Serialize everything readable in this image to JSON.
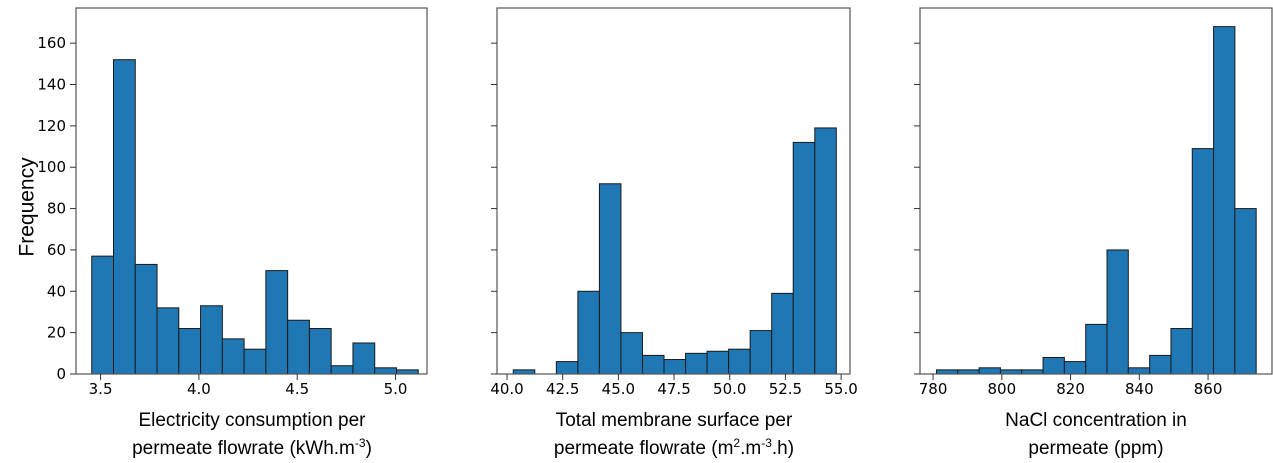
{
  "chart_data": [
    {
      "type": "bar",
      "title": "",
      "xlabel_lines": [
        [
          {
            "t": "Electricity consumption per"
          }
        ],
        [
          {
            "t": "permeate flowrate (kWh.m"
          },
          {
            "t": "-3",
            "sup": true
          },
          {
            "t": ")"
          }
        ]
      ],
      "ylabel": "Frequency",
      "xlim": [
        3.375,
        5.16
      ],
      "ylim": [
        0,
        177
      ],
      "xticks": [
        "3.5",
        "4.0",
        "4.5",
        "5.0"
      ],
      "xtick_values": [
        3.5,
        4.0,
        4.5,
        5.0
      ],
      "yticks": [
        "0",
        "20",
        "40",
        "60",
        "80",
        "100",
        "120",
        "140",
        "160"
      ],
      "ytick_values": [
        0,
        20,
        40,
        60,
        80,
        100,
        120,
        140,
        160
      ],
      "show_yticklabels": true,
      "bin_edges": [
        3.455,
        3.5657,
        3.6764,
        3.7871,
        3.8978,
        4.0085,
        4.1192,
        4.2299,
        4.3406,
        4.4513,
        4.562,
        4.6727,
        4.7834,
        4.8941,
        5.0048,
        5.1155
      ],
      "counts": [
        57,
        152,
        53,
        32,
        22,
        33,
        17,
        12,
        50,
        26,
        22,
        4,
        15,
        3,
        2
      ]
    },
    {
      "type": "bar",
      "title": "",
      "xlabel_lines": [
        [
          {
            "t": "Total membrane surface per"
          }
        ],
        [
          {
            "t": "permeate flowrate (m"
          },
          {
            "t": "2",
            "sup": true
          },
          {
            "t": ".m"
          },
          {
            "t": "-3",
            "sup": true
          },
          {
            "t": ".h)"
          }
        ]
      ],
      "ylabel": "",
      "xlim": [
        39.55,
        55.4
      ],
      "ylim": [
        0,
        177
      ],
      "xticks": [
        "40.0",
        "42.5",
        "45.0",
        "47.5",
        "50.0",
        "52.5",
        "55.0"
      ],
      "xtick_values": [
        40.0,
        42.5,
        45.0,
        47.5,
        50.0,
        52.5,
        55.0
      ],
      "yticks": [
        "0",
        "20",
        "40",
        "60",
        "80",
        "100",
        "120",
        "140",
        "160"
      ],
      "ytick_values": [
        0,
        20,
        40,
        60,
        80,
        100,
        120,
        140,
        160
      ],
      "show_yticklabels": false,
      "bin_edges": [
        40.28,
        41.247,
        42.214,
        43.181,
        44.148,
        45.115,
        46.082,
        47.049,
        48.016,
        48.983,
        49.95,
        50.917,
        51.884,
        52.851,
        53.818,
        54.785
      ],
      "counts": [
        2,
        0,
        6,
        40,
        92,
        20,
        9,
        7,
        10,
        11,
        12,
        21,
        39,
        112,
        119
      ]
    },
    {
      "type": "bar",
      "title": "",
      "xlabel_lines": [
        [
          {
            "t": "NaCl concentration in"
          }
        ],
        [
          {
            "t": "permeate (ppm)"
          }
        ]
      ],
      "ylabel": "",
      "xlim": [
        776.2,
        878.6
      ],
      "ylim": [
        0,
        177
      ],
      "xticks": [
        "780",
        "800",
        "820",
        "840",
        "860"
      ],
      "xtick_values": [
        780,
        800,
        820,
        840,
        860
      ],
      "yticks": [
        "0",
        "20",
        "40",
        "60",
        "80",
        "100",
        "120",
        "140",
        "160"
      ],
      "ytick_values": [
        0,
        20,
        40,
        60,
        80,
        100,
        120,
        140,
        160
      ],
      "show_yticklabels": false,
      "bin_edges": [
        781.0,
        787.2,
        793.4,
        799.6,
        805.8,
        812.0,
        818.2,
        824.4,
        830.6,
        836.8,
        843.0,
        849.2,
        855.4,
        861.6,
        867.8,
        874.0
      ],
      "counts": [
        2,
        2,
        3,
        2,
        2,
        8,
        6,
        24,
        60,
        3,
        9,
        22,
        109,
        168,
        80
      ]
    }
  ],
  "style": {
    "bar_color": "#1f77b4",
    "bar_edge_color": "#1a1a1a",
    "axis_color": "#555555"
  }
}
